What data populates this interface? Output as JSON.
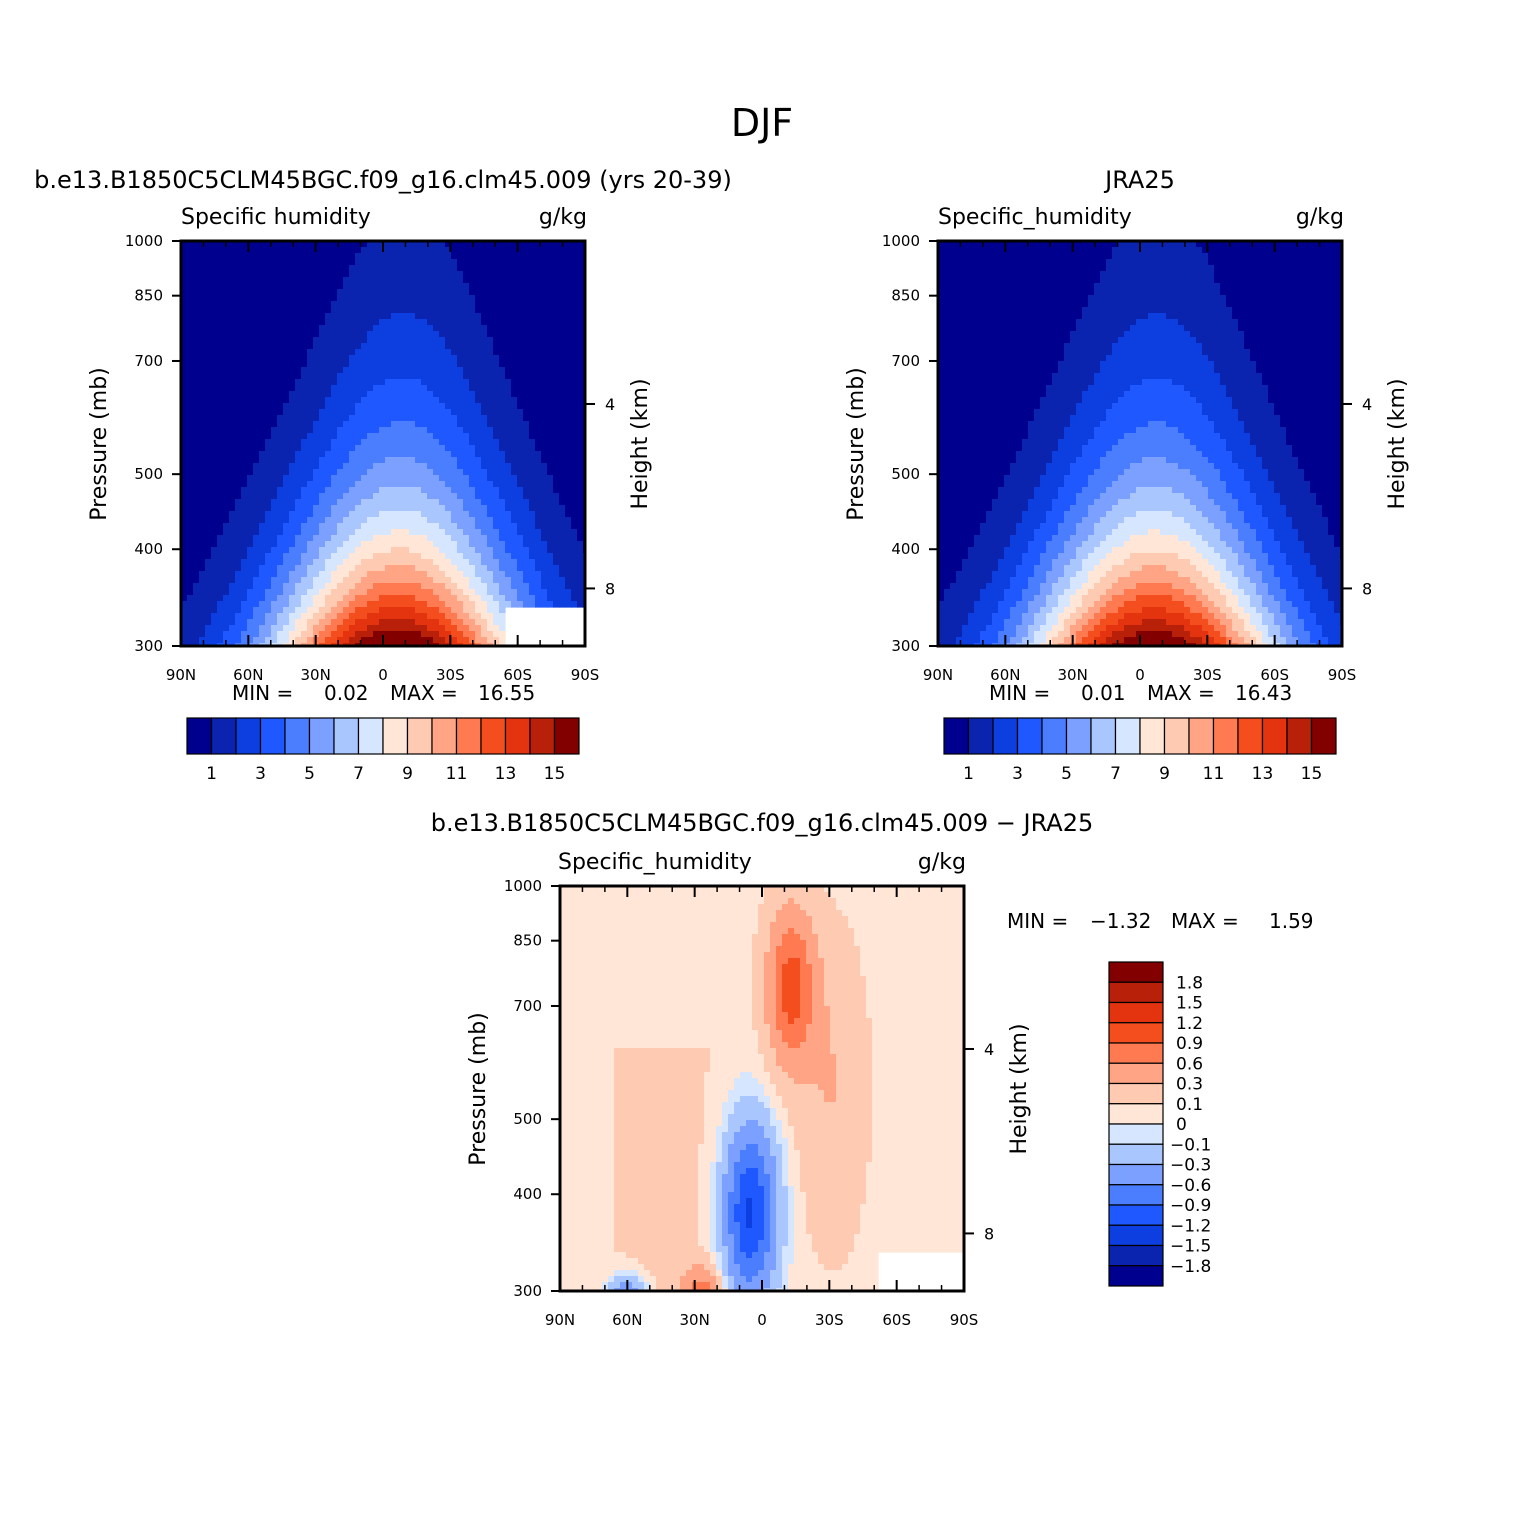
{
  "figure": {
    "title": "DJF"
  },
  "chart_data": [
    {
      "type": "contour",
      "case_title": "b.e13.B1850C5CLM45BGC.f09_g16.clm45.009 (yrs 20-39)",
      "left_label": "Specific humidity",
      "right_label": "g/kg",
      "ylabel": "Pressure (mb)",
      "ylabel_right": "Height (km)",
      "x_ticks": [
        "90N",
        "60N",
        "30N",
        "0",
        "30S",
        "60S",
        "90S"
      ],
      "y_ticks": [
        "300",
        "400",
        "500",
        "700",
        "850",
        "1000"
      ],
      "y_right_ticks": [
        "8",
        "4"
      ],
      "ylim": [
        1000,
        300
      ],
      "stats": {
        "min_label": "MIN =",
        "min": "0.02",
        "max_label": "MAX =",
        "max": "16.55"
      },
      "colorbar_labels": [
        "1",
        "3",
        "5",
        "7",
        "9",
        "11",
        "13",
        "15"
      ],
      "colorbar_levels": [
        0,
        1,
        2,
        3,
        4,
        5,
        6,
        7,
        8,
        9,
        10,
        11,
        12,
        13,
        14,
        15
      ],
      "field_peak": 16.55,
      "colors": [
        "#00008f",
        "#0a24b0",
        "#0d3ee0",
        "#1f58ff",
        "#4b7dff",
        "#7ba0ff",
        "#a9c6ff",
        "#d6e6ff",
        "#ffe6d6",
        "#ffcab2",
        "#ffa585",
        "#ff7a51",
        "#f44d1e",
        "#e4330f",
        "#b8200a",
        "#830000"
      ]
    },
    {
      "type": "contour",
      "case_title": "JRA25",
      "left_label": "Specific_humidity",
      "right_label": "g/kg",
      "ylabel": "Pressure (mb)",
      "ylabel_right": "Height (km)",
      "x_ticks": [
        "90N",
        "60N",
        "30N",
        "0",
        "30S",
        "60S",
        "90S"
      ],
      "y_ticks": [
        "300",
        "400",
        "500",
        "700",
        "850",
        "1000"
      ],
      "y_right_ticks": [
        "8",
        "4"
      ],
      "ylim": [
        1000,
        300
      ],
      "stats": {
        "min_label": "MIN =",
        "min": "0.01",
        "max_label": "MAX =",
        "max": "16.43"
      },
      "colorbar_labels": [
        "1",
        "3",
        "5",
        "7",
        "9",
        "11",
        "13",
        "15"
      ],
      "colorbar_levels": [
        0,
        1,
        2,
        3,
        4,
        5,
        6,
        7,
        8,
        9,
        10,
        11,
        12,
        13,
        14,
        15
      ],
      "field_peak": 16.43,
      "colors": [
        "#00008f",
        "#0a24b0",
        "#0d3ee0",
        "#1f58ff",
        "#4b7dff",
        "#7ba0ff",
        "#a9c6ff",
        "#d6e6ff",
        "#ffe6d6",
        "#ffcab2",
        "#ffa585",
        "#ff7a51",
        "#f44d1e",
        "#e4330f",
        "#b8200a",
        "#830000"
      ]
    },
    {
      "type": "contour",
      "case_title": "b.e13.B1850C5CLM45BGC.f09_g16.clm45.009 − JRA25",
      "left_label": "Specific_humidity",
      "right_label": "g/kg",
      "ylabel": "Pressure (mb)",
      "ylabel_right": "Height (km)",
      "x_ticks": [
        "90N",
        "60N",
        "30N",
        "0",
        "30S",
        "60S",
        "90S"
      ],
      "y_ticks": [
        "300",
        "400",
        "500",
        "700",
        "850",
        "1000"
      ],
      "y_right_ticks": [
        "8",
        "4"
      ],
      "ylim": [
        1000,
        300
      ],
      "stats": {
        "min_label": "MIN =",
        "min": "−1.32",
        "max_label": "MAX =",
        "max": "1.59"
      },
      "colorbar_labels": [
        "1.8",
        "1.5",
        "1.2",
        "0.9",
        "0.6",
        "0.3",
        "0.1",
        "0",
        "−0.1",
        "−0.3",
        "−0.6",
        "−0.9",
        "−1.2",
        "−1.5",
        "−1.8"
      ],
      "colors": [
        "#830000",
        "#b8200a",
        "#e4330f",
        "#f44d1e",
        "#ff7a51",
        "#ffa585",
        "#ffcab2",
        "#ffe6d6",
        "#d6e6ff",
        "#a9c6ff",
        "#7ba0ff",
        "#4b7dff",
        "#1f58ff",
        "#0d3ee0",
        "#0a24b0",
        "#00008f"
      ],
      "neg_colors": [
        "#d6e6ff",
        "#a9c6ff",
        "#7ba0ff",
        "#4b7dff",
        "#1f58ff"
      ],
      "pos_colors": [
        "#ffe6d6",
        "#ffcab2",
        "#ffa585",
        "#ff7a51",
        "#f44d1e"
      ]
    }
  ]
}
